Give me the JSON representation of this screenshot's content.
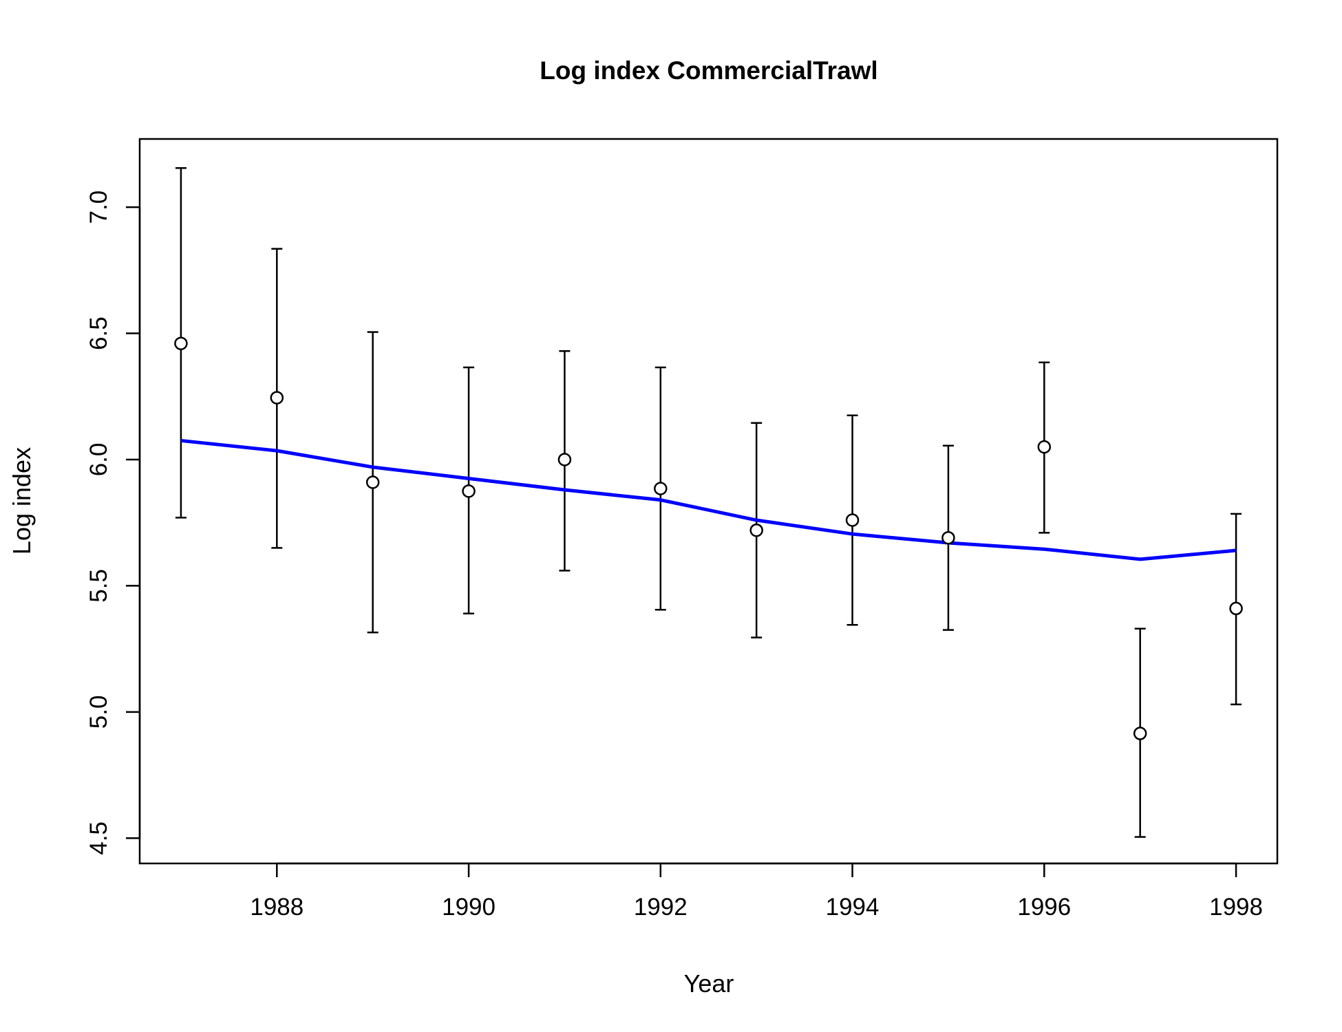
{
  "chart_data": {
    "type": "scatter",
    "title": "Log index CommercialTrawl",
    "xlabel": "Year",
    "ylabel": "Log index",
    "xlim": [
      1986.57,
      1998.43
    ],
    "ylim": [
      4.4,
      7.27
    ],
    "x_ticks": [
      1988,
      1990,
      1992,
      1994,
      1996,
      1998
    ],
    "y_ticks": [
      4.5,
      5.0,
      5.5,
      6.0,
      6.5,
      7.0
    ],
    "x_tick_labels": [
      "1988",
      "1990",
      "1992",
      "1994",
      "1996",
      "1998"
    ],
    "y_tick_labels": [
      "4.5",
      "5.0",
      "5.5",
      "6.0",
      "6.5",
      "7.0"
    ],
    "grid": false,
    "colors": {
      "observed": "#000000",
      "fit": "#0000ff",
      "point_fill": "#ffffff"
    },
    "series": [
      {
        "kind": "points-with-error-bars",
        "x": [
          1987,
          1988,
          1989,
          1990,
          1991,
          1992,
          1993,
          1994,
          1995,
          1996,
          1997,
          1998
        ],
        "y": [
          6.46,
          6.245,
          5.91,
          5.875,
          6.0,
          5.885,
          5.72,
          5.76,
          5.69,
          6.05,
          4.915,
          5.41
        ],
        "lower": [
          5.77,
          5.65,
          5.315,
          5.39,
          5.56,
          5.405,
          5.295,
          5.345,
          5.325,
          5.71,
          4.505,
          5.03
        ],
        "upper": [
          7.155,
          6.835,
          6.505,
          6.365,
          6.43,
          6.365,
          6.145,
          6.175,
          6.055,
          6.385,
          5.33,
          5.785
        ]
      },
      {
        "kind": "line",
        "x": [
          1987,
          1988,
          1989,
          1990,
          1991,
          1992,
          1993,
          1994,
          1995,
          1996,
          1997,
          1998
        ],
        "y": [
          6.075,
          6.035,
          5.97,
          5.925,
          5.88,
          5.84,
          5.76,
          5.705,
          5.67,
          5.645,
          5.605,
          5.64
        ]
      }
    ]
  }
}
